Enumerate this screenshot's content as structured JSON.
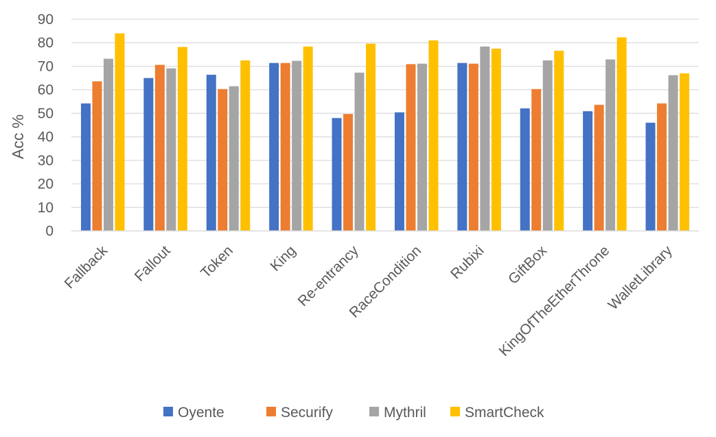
{
  "chart_data": {
    "type": "bar",
    "title": "",
    "xlabel": "",
    "ylabel": "Acc %",
    "ylim": [
      0,
      90
    ],
    "yticks": [
      0,
      10,
      20,
      30,
      40,
      50,
      60,
      70,
      80,
      90
    ],
    "grid": true,
    "legend_position": "bottom",
    "categories": [
      "Fallback",
      "Fallout",
      "Token",
      "King",
      "Re-entrancy",
      "RaceCondition",
      "Rubixi",
      "GiftBox",
      "KingOfTheEtherThrone",
      "WalletLibrary"
    ],
    "series": [
      {
        "name": "Oyente",
        "color": "#4472C4",
        "values": [
          54.2,
          65.0,
          66.4,
          71.4,
          48.0,
          50.4,
          71.4,
          52.1,
          50.9,
          46.0
        ]
      },
      {
        "name": "Securify",
        "color": "#ED7D31",
        "values": [
          63.6,
          70.6,
          60.3,
          71.4,
          49.7,
          70.9,
          71.1,
          60.3,
          53.6,
          54.2
        ]
      },
      {
        "name": "Mythril",
        "color": "#A5A5A5",
        "values": [
          73.2,
          69.1,
          61.5,
          72.3,
          67.3,
          71.1,
          78.4,
          72.5,
          72.9,
          66.2
        ]
      },
      {
        "name": "SmartCheck",
        "color": "#FFC000",
        "values": [
          84.0,
          78.2,
          72.5,
          78.4,
          79.6,
          81.0,
          77.5,
          76.6,
          82.3,
          67.0
        ]
      }
    ]
  }
}
